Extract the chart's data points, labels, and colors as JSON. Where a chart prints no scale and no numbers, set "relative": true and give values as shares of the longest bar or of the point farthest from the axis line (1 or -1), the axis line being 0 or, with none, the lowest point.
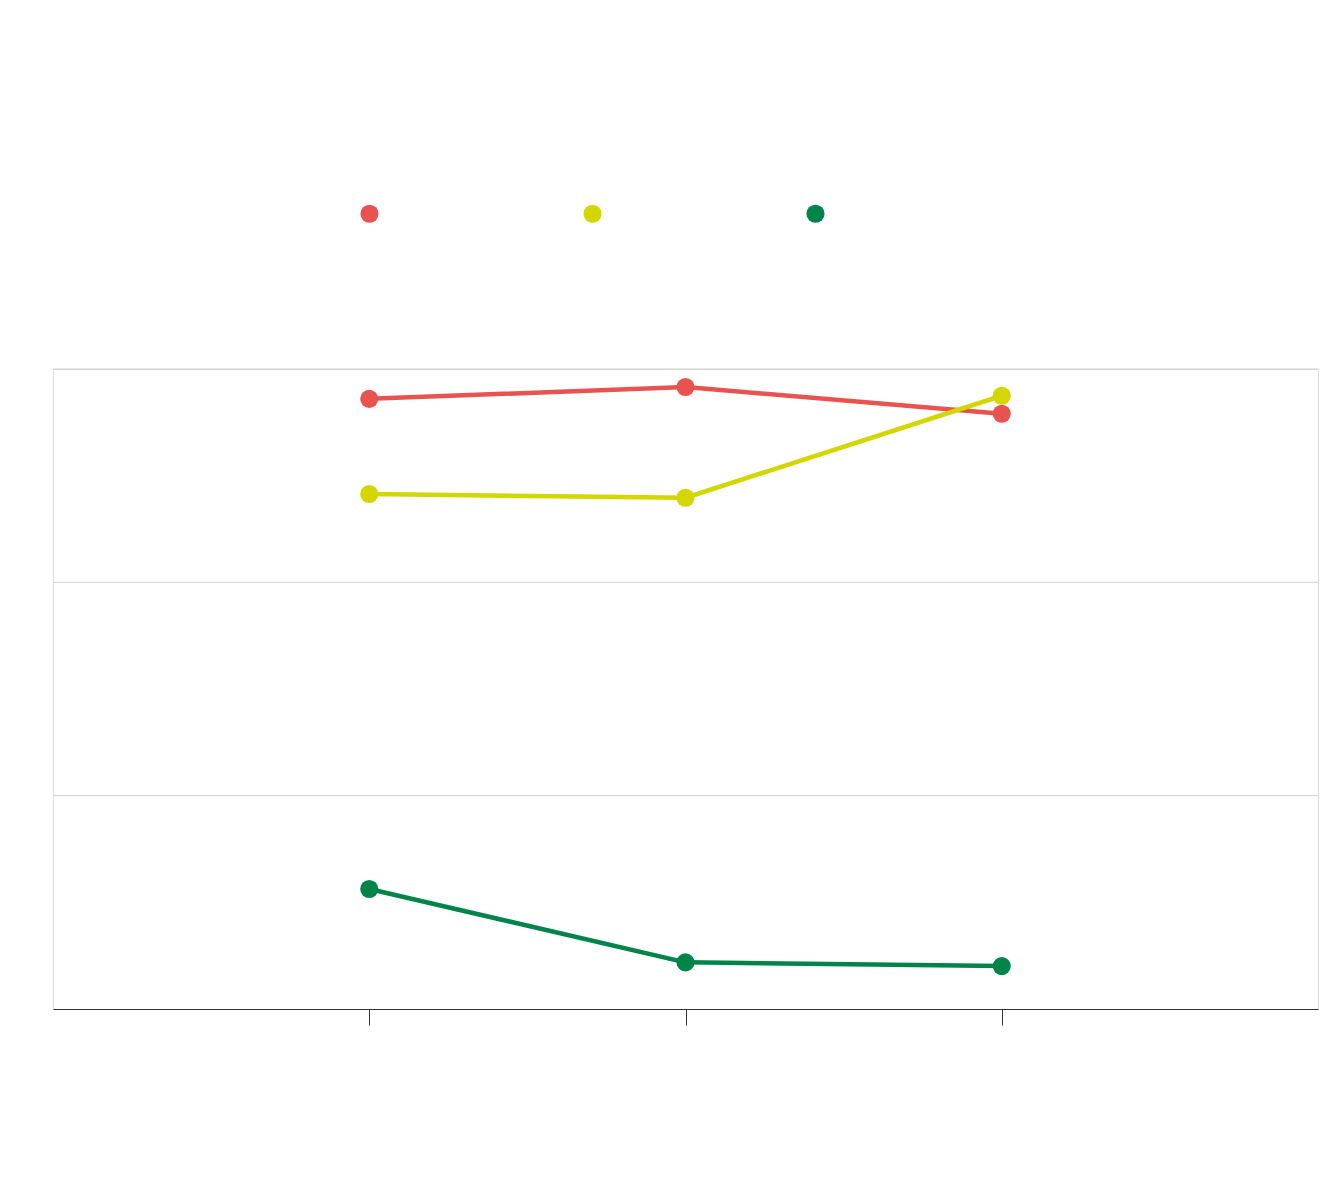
{
  "chart_data": {
    "type": "line",
    "relative": true,
    "categories": [
      null,
      null,
      null
    ],
    "series": [
      {
        "color": "#e8534f",
        "values": [
          0.981,
          1,
          0.957
        ]
      },
      {
        "color": "#d4d600",
        "values": [
          0.828,
          0.822,
          0.986
        ]
      },
      {
        "color": "#00844a",
        "values": [
          0.193,
          0.075,
          0.069
        ]
      }
    ],
    "ref_lines": [
      {
        "axis": "y",
        "value": 0.343,
        "color": "#d0d0d0"
      },
      {
        "axis": "y",
        "value": 0.686,
        "color": "#d0d0d0"
      },
      {
        "axis": "y",
        "value": 1.029,
        "color": "#d0d0d0"
      }
    ],
    "marker": "circle",
    "line_style": "solid",
    "tick_labels": false
  }
}
